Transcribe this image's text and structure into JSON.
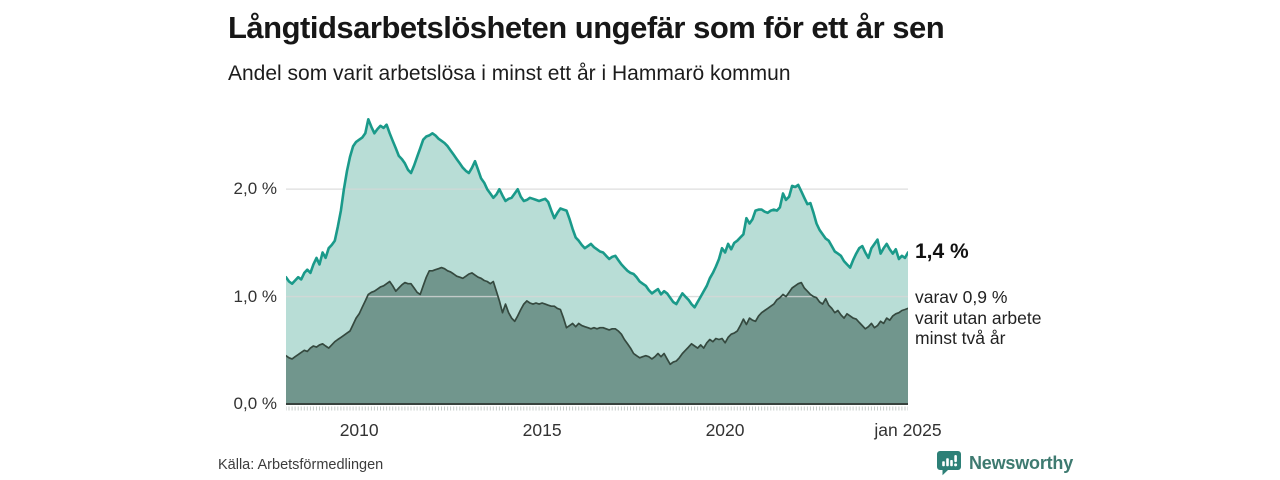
{
  "title": "Långtidsarbetslösheten ungefär som för ett år sen",
  "subtitle": "Andel som varit arbetslösa i minst ett år i Hammarö kommun",
  "source": "Källa: Arbetsförmedlingen",
  "branding": {
    "name": "Newsworthy",
    "text_color": "#3e7a70",
    "icon_bg": "#2d8077"
  },
  "annotations": {
    "latest_total": "1,4 %",
    "latest_subseries_lines": [
      "varav 0,9 %",
      "varit utan arbete",
      "minst två år"
    ]
  },
  "colors": {
    "total_line": "#1a9a8a",
    "total_fill": "#b8ddd6",
    "two_year_line": "#35493f",
    "two_year_fill": "#71968d",
    "gridline": "#d7d7d7",
    "baseline": "#37423d",
    "tick": "#c4cbc8"
  },
  "chart_data": {
    "type": "area",
    "x_start": "2008-01",
    "x_end": "2025-01",
    "x_step_months": 1,
    "grid": "horizontal",
    "legend_position": "none",
    "ylim": [
      0,
      2.83
    ],
    "yticks": [
      {
        "label": "0,0 %",
        "value": 0
      },
      {
        "label": "1,0 %",
        "value": 1
      },
      {
        "label": "2,0 %",
        "value": 2
      }
    ],
    "xticks": [
      {
        "label": "2010",
        "month_index": 24
      },
      {
        "label": "2015",
        "month_index": 84
      },
      {
        "label": "2020",
        "month_index": 144
      },
      {
        "label": "jan 2025",
        "month_index": 204
      }
    ],
    "series": [
      {
        "name": "Andel som varit arbetslösa i minst ett år",
        "line_color": "#1a9a8a",
        "fill_color": "#b8ddd6",
        "line_width": 2.6,
        "latest_value": 1.4,
        "values": [
          1.18,
          1.14,
          1.12,
          1.15,
          1.18,
          1.16,
          1.22,
          1.25,
          1.22,
          1.3,
          1.36,
          1.3,
          1.41,
          1.36,
          1.45,
          1.48,
          1.52,
          1.65,
          1.8,
          2.0,
          2.17,
          2.3,
          2.4,
          2.44,
          2.46,
          2.48,
          2.52,
          2.65,
          2.58,
          2.52,
          2.56,
          2.59,
          2.57,
          2.6,
          2.52,
          2.45,
          2.38,
          2.31,
          2.28,
          2.24,
          2.18,
          2.15,
          2.22,
          2.3,
          2.38,
          2.46,
          2.49,
          2.5,
          2.52,
          2.5,
          2.47,
          2.45,
          2.43,
          2.4,
          2.36,
          2.32,
          2.28,
          2.24,
          2.2,
          2.17,
          2.15,
          2.2,
          2.26,
          2.18,
          2.1,
          2.06,
          2.0,
          1.96,
          1.92,
          1.95,
          2.0,
          1.94,
          1.89,
          1.91,
          1.92,
          1.96,
          2.0,
          1.93,
          1.89,
          1.9,
          1.92,
          1.91,
          1.9,
          1.89,
          1.9,
          1.91,
          1.88,
          1.8,
          1.73,
          1.78,
          1.82,
          1.81,
          1.8,
          1.72,
          1.63,
          1.55,
          1.52,
          1.48,
          1.45,
          1.47,
          1.49,
          1.46,
          1.44,
          1.42,
          1.41,
          1.38,
          1.35,
          1.37,
          1.38,
          1.34,
          1.3,
          1.27,
          1.24,
          1.22,
          1.21,
          1.18,
          1.14,
          1.12,
          1.1,
          1.06,
          1.03,
          1.05,
          1.07,
          1.02,
          1.05,
          1.03,
          0.99,
          0.95,
          0.93,
          0.98,
          1.03,
          1.0,
          0.97,
          0.93,
          0.9,
          0.95,
          1.0,
          1.05,
          1.1,
          1.17,
          1.22,
          1.28,
          1.35,
          1.45,
          1.41,
          1.49,
          1.44,
          1.5,
          1.52,
          1.55,
          1.58,
          1.73,
          1.68,
          1.72,
          1.8,
          1.81,
          1.81,
          1.79,
          1.78,
          1.8,
          1.81,
          1.8,
          1.83,
          1.96,
          1.9,
          1.93,
          2.03,
          2.02,
          2.04,
          1.98,
          1.92,
          1.86,
          1.87,
          1.78,
          1.68,
          1.62,
          1.58,
          1.54,
          1.52,
          1.47,
          1.42,
          1.4,
          1.38,
          1.33,
          1.3,
          1.27,
          1.34,
          1.4,
          1.45,
          1.47,
          1.41,
          1.36,
          1.45,
          1.49,
          1.53,
          1.4,
          1.45,
          1.49,
          1.44,
          1.4,
          1.44,
          1.35,
          1.38,
          1.36,
          1.41
        ]
      },
      {
        "name": "varav utan arbete minst två år",
        "line_color": "#35493f",
        "fill_color": "#71968d",
        "line_width": 1.7,
        "latest_value": 0.9,
        "values": [
          0.45,
          0.43,
          0.42,
          0.44,
          0.46,
          0.48,
          0.5,
          0.49,
          0.52,
          0.54,
          0.53,
          0.55,
          0.56,
          0.54,
          0.52,
          0.55,
          0.58,
          0.6,
          0.62,
          0.64,
          0.66,
          0.68,
          0.74,
          0.8,
          0.84,
          0.9,
          0.96,
          1.02,
          1.04,
          1.05,
          1.07,
          1.09,
          1.1,
          1.12,
          1.14,
          1.1,
          1.05,
          1.08,
          1.11,
          1.13,
          1.12,
          1.12,
          1.08,
          1.04,
          1.02,
          1.1,
          1.18,
          1.24,
          1.24,
          1.25,
          1.26,
          1.27,
          1.26,
          1.24,
          1.23,
          1.21,
          1.19,
          1.18,
          1.17,
          1.19,
          1.21,
          1.22,
          1.2,
          1.18,
          1.17,
          1.15,
          1.14,
          1.12,
          1.14,
          1.05,
          0.96,
          0.85,
          0.93,
          0.85,
          0.8,
          0.77,
          0.82,
          0.88,
          0.93,
          0.96,
          0.94,
          0.93,
          0.94,
          0.93,
          0.94,
          0.93,
          0.92,
          0.91,
          0.91,
          0.89,
          0.88,
          0.8,
          0.71,
          0.73,
          0.75,
          0.72,
          0.75,
          0.73,
          0.72,
          0.71,
          0.7,
          0.71,
          0.7,
          0.71,
          0.71,
          0.7,
          0.69,
          0.7,
          0.7,
          0.68,
          0.65,
          0.6,
          0.56,
          0.52,
          0.47,
          0.45,
          0.43,
          0.44,
          0.45,
          0.44,
          0.42,
          0.44,
          0.47,
          0.44,
          0.47,
          0.42,
          0.37,
          0.39,
          0.4,
          0.43,
          0.47,
          0.5,
          0.53,
          0.56,
          0.54,
          0.52,
          0.55,
          0.52,
          0.57,
          0.6,
          0.58,
          0.61,
          0.6,
          0.61,
          0.57,
          0.62,
          0.65,
          0.66,
          0.68,
          0.73,
          0.79,
          0.74,
          0.8,
          0.78,
          0.77,
          0.82,
          0.85,
          0.87,
          0.89,
          0.91,
          0.93,
          0.97,
          0.99,
          1.02,
          1.0,
          1.04,
          1.08,
          1.1,
          1.12,
          1.13,
          1.08,
          1.05,
          1.02,
          1.0,
          0.99,
          0.95,
          0.93,
          0.98,
          0.92,
          0.89,
          0.85,
          0.87,
          0.83,
          0.8,
          0.84,
          0.82,
          0.8,
          0.79,
          0.76,
          0.73,
          0.7,
          0.72,
          0.75,
          0.71,
          0.73,
          0.77,
          0.75,
          0.8,
          0.78,
          0.82,
          0.84,
          0.85,
          0.87,
          0.88,
          0.89
        ]
      }
    ]
  }
}
